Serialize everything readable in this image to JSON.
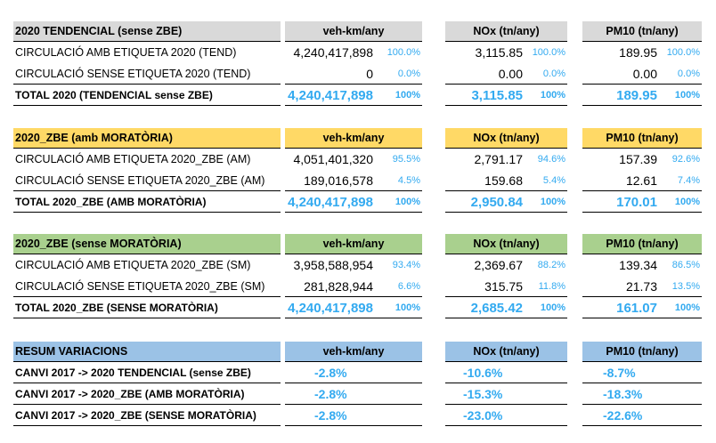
{
  "colors": {
    "grey": "#d9d9d9",
    "yellow": "#ffd966",
    "green": "#a9d08e",
    "blue": "#9bc2e6",
    "accent": "#33aaf0"
  },
  "sections": [
    {
      "header": {
        "title": "2020 TENDENCIAL (sense ZBE)",
        "col1": "veh-km/any",
        "col2": "NOx (tn/any)",
        "col3": "PM10 (tn/any)"
      },
      "rows": [
        {
          "label": "CIRCULACIÓ AMB ETIQUETA 2020 (TEND)",
          "v1": "4,240,417,898",
          "p1": "100.0%",
          "v2": "3,115.85",
          "p2": "100.0%",
          "v3": "189.95",
          "p3": "100.0%"
        },
        {
          "label": "CIRCULACIÓ SENSE ETIQUETA 2020 (TEND)",
          "v1": "0",
          "p1": "0.0%",
          "v2": "0.00",
          "p2": "0.0%",
          "v3": "0.00",
          "p3": "0.0%"
        }
      ],
      "total": {
        "label": "TOTAL 2020 (TENDENCIAL sense ZBE)",
        "v1": "4,240,417,898",
        "p1": "100%",
        "v2": "3,115.85",
        "p2": "100%",
        "v3": "189.95",
        "p3": "100%"
      }
    },
    {
      "header": {
        "title": "2020_ZBE (amb MORATÒRIA)",
        "col1": "veh-km/any",
        "col2": "NOx (tn/any)",
        "col3": "PM10 (tn/any)"
      },
      "rows": [
        {
          "label": "CIRCULACIÓ AMB ETIQUETA 2020_ZBE (AM)",
          "v1": "4,051,401,320",
          "p1": "95.5%",
          "v2": "2,791.17",
          "p2": "94.6%",
          "v3": "157.39",
          "p3": "92.6%"
        },
        {
          "label": "CIRCULACIÓ SENSE ETIQUETA 2020_ZBE (AM)",
          "v1": "189,016,578",
          "p1": "4.5%",
          "v2": "159.68",
          "p2": "5.4%",
          "v3": "12.61",
          "p3": "7.4%"
        }
      ],
      "total": {
        "label": "TOTAL 2020_ZBE (AMB MORATÒRIA)",
        "v1": "4,240,417,898",
        "p1": "100%",
        "v2": "2,950.84",
        "p2": "100%",
        "v3": "170.01",
        "p3": "100%"
      }
    },
    {
      "header": {
        "title": "2020_ZBE (sense MORATÒRIA)",
        "col1": "veh-km/any",
        "col2": "NOx (tn/any)",
        "col3": "PM10 (tn/any)"
      },
      "rows": [
        {
          "label": "CIRCULACIÓ AMB ETIQUETA 2020_ZBE (SM)",
          "v1": "3,958,588,954",
          "p1": "93.4%",
          "v2": "2,369.67",
          "p2": "88.2%",
          "v3": "139.34",
          "p3": "86.5%"
        },
        {
          "label": "CIRCULACIÓ SENSE ETIQUETA 2020_ZBE (SM)",
          "v1": "281,828,944",
          "p1": "6.6%",
          "v2": "315.75",
          "p2": "11.8%",
          "v3": "21.73",
          "p3": "13.5%"
        }
      ],
      "total": {
        "label": "TOTAL 2020_ZBE (SENSE MORATÒRIA)",
        "v1": "4,240,417,898",
        "p1": "100%",
        "v2": "2,685.42",
        "p2": "100%",
        "v3": "161.07",
        "p3": "100%"
      }
    }
  ],
  "summary": {
    "header": {
      "title": "RESUM VARIACIONS",
      "col1": "veh-km/any",
      "col2": "NOx (tn/any)",
      "col3": "PM10 (tn/any)"
    },
    "rows": [
      {
        "label": "CANVI 2017 -> 2020 TENDENCIAL (sense ZBE)",
        "v1": "-2.8%",
        "v2": "-10.6%",
        "v3": "-8.7%"
      },
      {
        "label": "CANVI 2017 -> 2020_ZBE (AMB MORATÒRIA)",
        "v1": "-2.8%",
        "v2": "-15.3%",
        "v3": "-18.3%"
      },
      {
        "label": "CANVI 2017 -> 2020_ZBE (SENSE MORATÒRIA)",
        "v1": "-2.8%",
        "v2": "-23.0%",
        "v3": "-22.6%"
      }
    ]
  }
}
